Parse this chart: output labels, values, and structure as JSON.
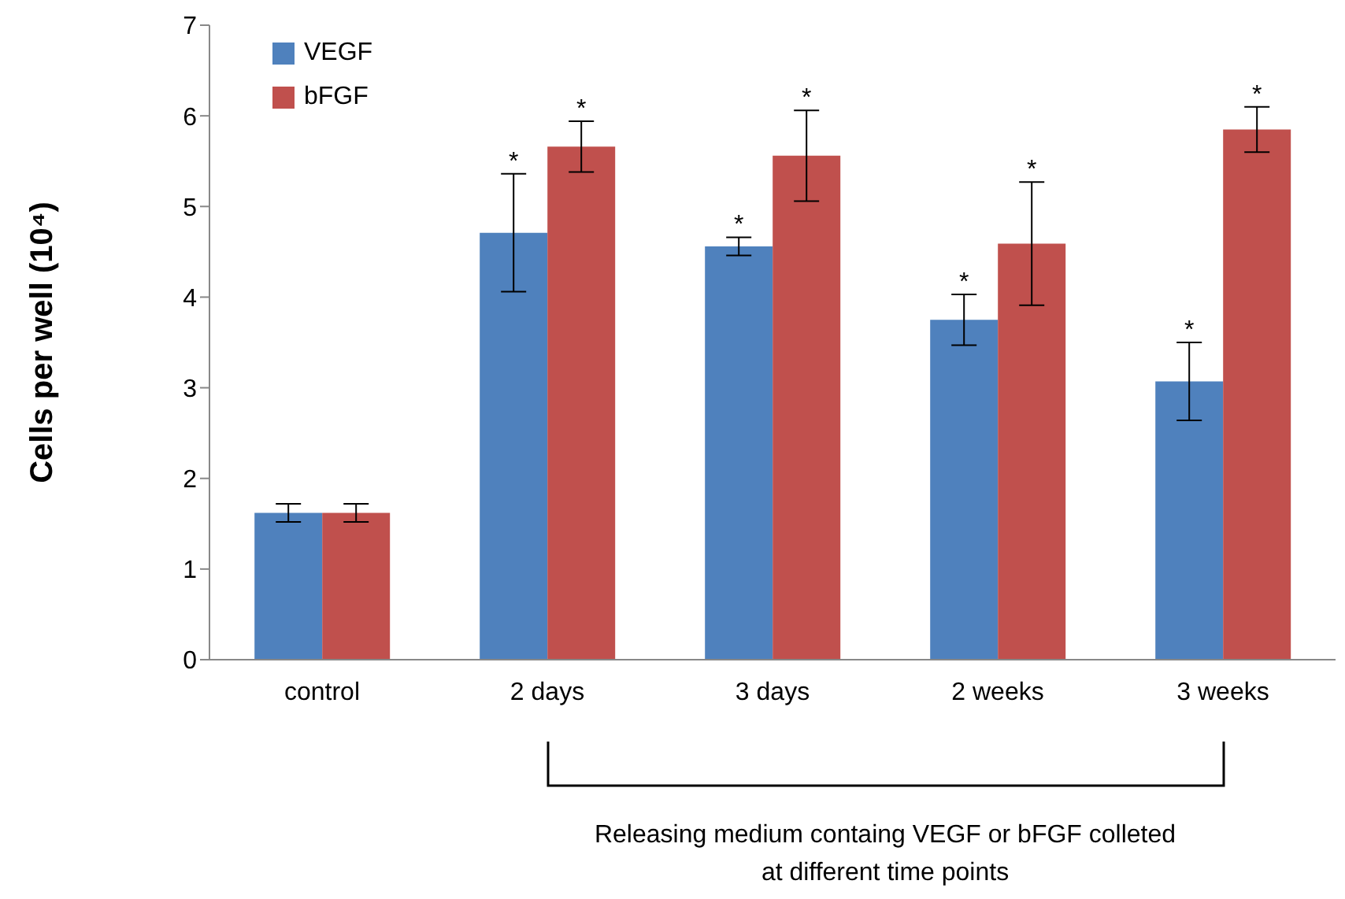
{
  "chart_data": {
    "type": "bar",
    "ylabel": "Cells per well (10⁴)",
    "categories": [
      "control",
      "2 days",
      "3 days",
      "2 weeks",
      "3 weeks"
    ],
    "series": [
      {
        "name": "VEGF",
        "color": "#4f81bd",
        "values": [
          1.62,
          4.71,
          4.56,
          3.75,
          3.07
        ],
        "errors": [
          0.1,
          0.65,
          0.1,
          0.28,
          0.43
        ],
        "value_labels": [
          null,
          "*",
          "*",
          "*",
          "*"
        ]
      },
      {
        "name": "bFGF",
        "color": "#c0504d",
        "values": [
          1.62,
          5.66,
          5.56,
          4.59,
          5.85
        ],
        "errors": [
          0.1,
          0.28,
          0.5,
          0.68,
          0.25
        ],
        "value_labels": [
          null,
          "*",
          "*",
          "*",
          "*"
        ]
      }
    ],
    "ylim": [
      0,
      7
    ],
    "yticks": [
      0,
      1,
      2,
      3,
      4,
      5,
      6,
      7
    ],
    "grid": false,
    "legend": "top left",
    "annotations": [
      "Releasing medium containg VEGF or bFGF colleted at different time points"
    ]
  }
}
